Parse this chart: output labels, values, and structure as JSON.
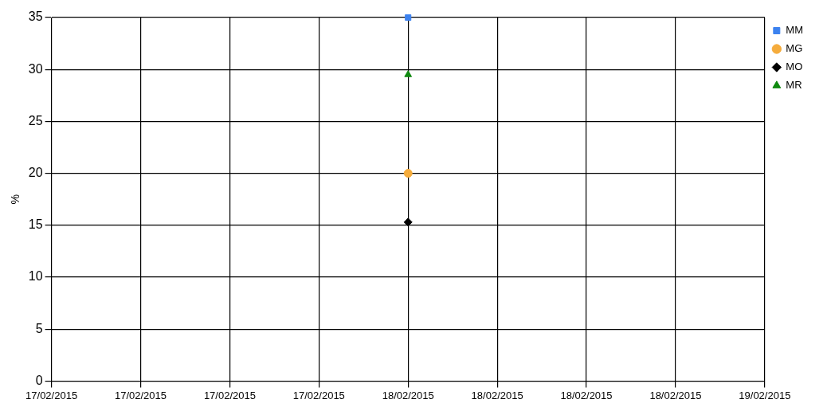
{
  "chart_data": {
    "type": "line",
    "ylabel": "%",
    "xlim": [
      "2015-02-17T00:00",
      "2015-02-19T00:00"
    ],
    "xticks": [
      {
        "value": "2015-02-17T00:00",
        "label": "17/02/2015"
      },
      {
        "value": "2015-02-17T06:00",
        "label": "17/02/2015"
      },
      {
        "value": "2015-02-17T12:00",
        "label": "17/02/2015"
      },
      {
        "value": "2015-02-17T18:00",
        "label": "17/02/2015"
      },
      {
        "value": "2015-02-18T00:00",
        "label": "18/02/2015"
      },
      {
        "value": "2015-02-18T06:00",
        "label": "18/02/2015"
      },
      {
        "value": "2015-02-18T12:00",
        "label": "18/02/2015"
      },
      {
        "value": "2015-02-18T18:00",
        "label": "18/02/2015"
      },
      {
        "value": "2015-02-19T00:00",
        "label": "19/02/2015"
      }
    ],
    "ylim": [
      0,
      35
    ],
    "yticks": [
      0,
      5,
      10,
      15,
      20,
      25,
      30,
      35
    ],
    "grid": true,
    "legend": "top right",
    "series": [
      {
        "name": "MM",
        "color": "#3c82ef",
        "marker": "square",
        "x": [
          "2015-02-18T00:00"
        ],
        "values": [
          35
        ]
      },
      {
        "name": "MG",
        "color": "#f5ac3c",
        "marker": "circle",
        "x": [
          "2015-02-18T00:00"
        ],
        "values": [
          20
        ]
      },
      {
        "name": "MO",
        "color": "#000000",
        "marker": "diamond",
        "x": [
          "2015-02-18T00:00"
        ],
        "values": [
          15.3
        ]
      },
      {
        "name": "MR",
        "color": "#108a10",
        "marker": "triangle",
        "x": [
          "2015-02-18T00:00"
        ],
        "values": [
          29.5
        ]
      }
    ]
  }
}
